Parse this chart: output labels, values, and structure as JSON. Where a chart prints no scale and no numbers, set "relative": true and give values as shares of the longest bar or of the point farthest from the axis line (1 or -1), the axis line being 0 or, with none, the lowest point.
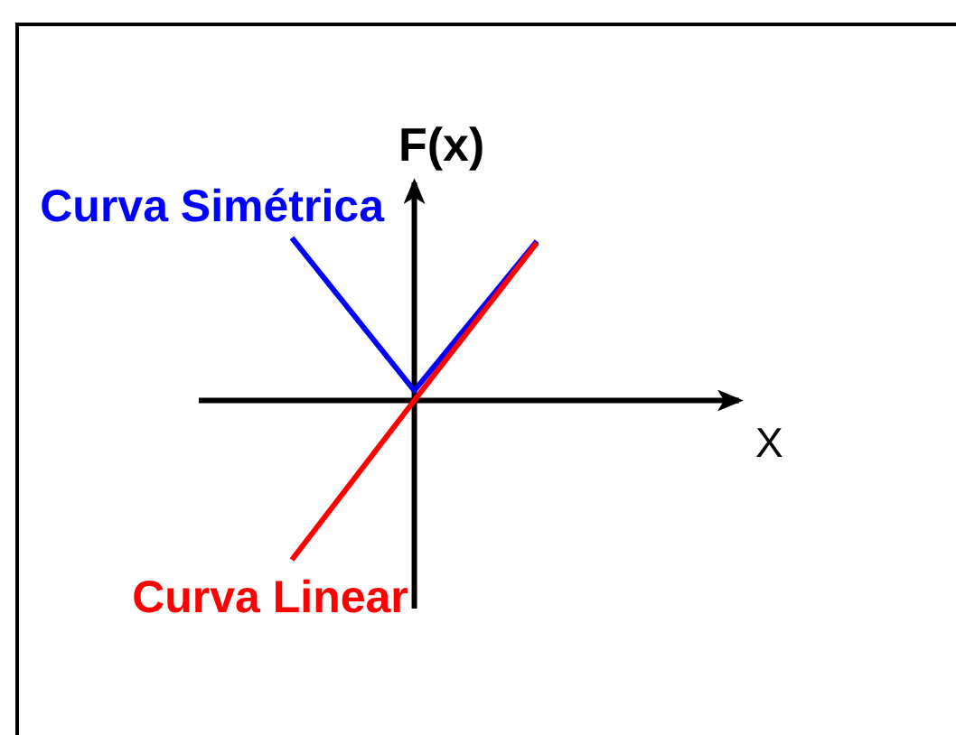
{
  "chart_data": {
    "type": "line",
    "xlabel": "X",
    "ylabel": "F(x)",
    "categories": [
      null,
      null,
      null
    ],
    "relative": true,
    "series": [
      {
        "name": "Curva Simétrica",
        "color": "#0000ff",
        "values": [
          1,
          0.06,
          0.98
        ]
      },
      {
        "name": "Curva Linear",
        "color": "#ff0000",
        "values": [
          -0.98,
          0,
          0.97
        ]
      }
    ]
  }
}
